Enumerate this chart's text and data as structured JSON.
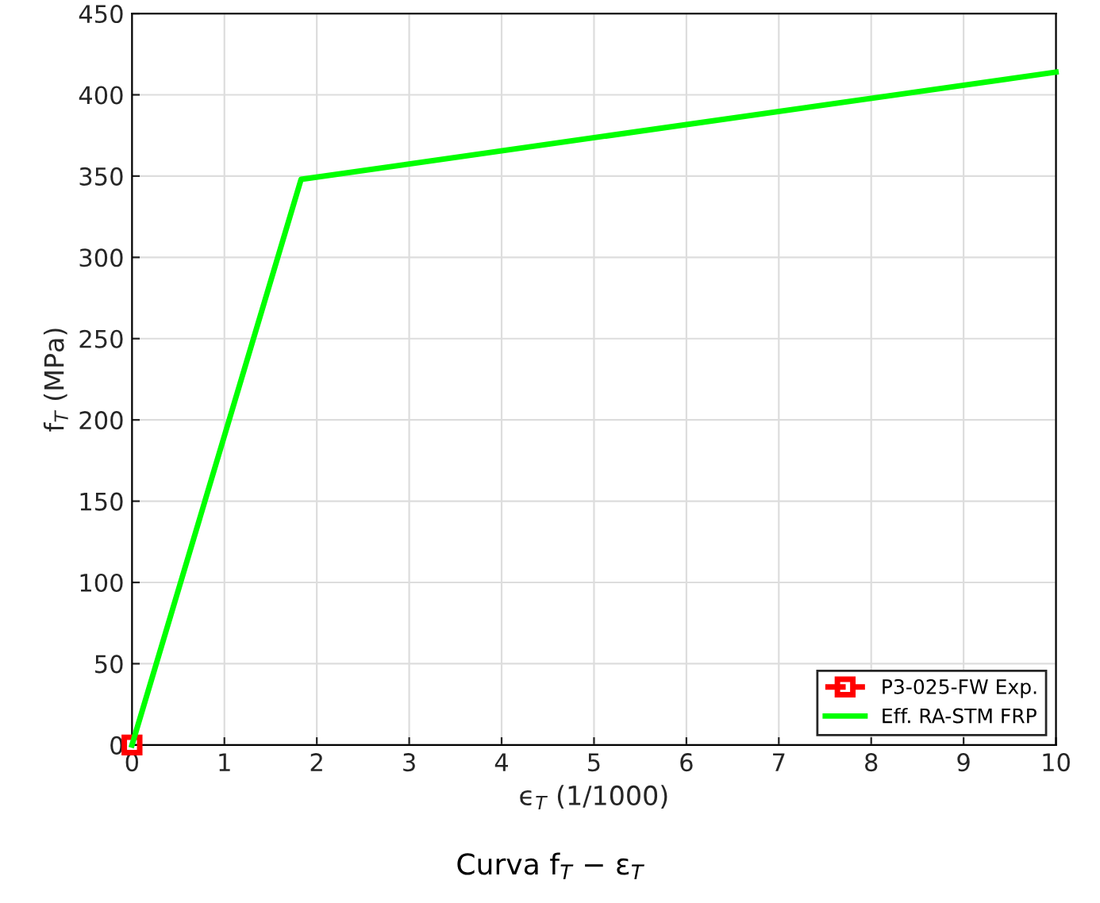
{
  "chart_data": {
    "type": "line",
    "xlabel": "ϵ$_{T}$ (1/1000)",
    "ylabel": "f$_{T}$ (MPa)",
    "annotations": [
      "Curva f$_{T}$ − ε$_{T}$"
    ],
    "xlim": [
      0,
      10
    ],
    "ylim": [
      0,
      450
    ],
    "xticks": [
      0,
      1,
      2,
      3,
      4,
      5,
      6,
      7,
      8,
      9,
      10
    ],
    "yticks": [
      0,
      50,
      100,
      150,
      200,
      250,
      300,
      350,
      400,
      450
    ],
    "grid": true,
    "legend": "bottom right",
    "series": [
      {
        "name": "P3-025-FW Exp.",
        "color": "#ff0000",
        "x": [
          0
        ],
        "values": [
          0
        ],
        "marker": "square",
        "line_style": "dashed"
      },
      {
        "name": "Eff. RA-STM FRP",
        "color": "#00ff00",
        "x": [
          0,
          1.83,
          10
        ],
        "values": [
          0,
          348,
          414
        ],
        "marker": "none",
        "line_style": "solid"
      }
    ]
  }
}
